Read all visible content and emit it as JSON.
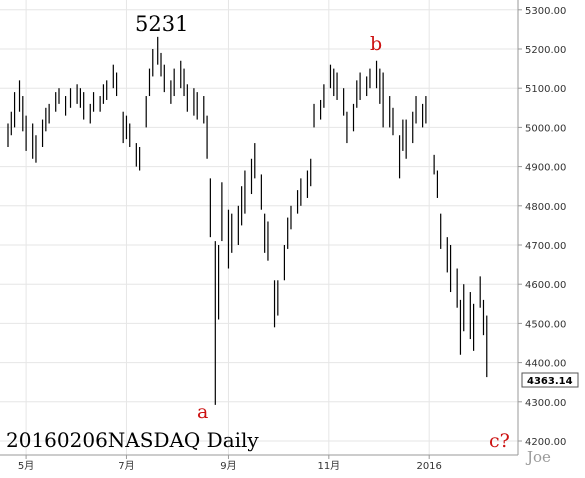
{
  "chart_data": {
    "type": "bar",
    "title": "20160206NASDAQ Daily",
    "y_axis": {
      "ticks": [
        "4200.00",
        "4300.00",
        "4400.00",
        "4500.00",
        "4600.00",
        "4700.00",
        "4800.00",
        "4900.00",
        "5000.00",
        "5100.00",
        "5200.00",
        "5300.00"
      ],
      "ylim": [
        4180,
        5320
      ],
      "side": "right"
    },
    "x_axis": {
      "ticks": [
        {
          "label": "5月",
          "date": "2015-05-01"
        },
        {
          "label": "7月",
          "date": "2015-07-01"
        },
        {
          "label": "9月",
          "date": "2015-09-01"
        },
        {
          "label": "11月",
          "date": "2015-11-01"
        },
        {
          "label": "2016",
          "date": "2016-01-01"
        }
      ],
      "xlim": [
        "2015-04-20",
        "2016-02-10"
      ]
    },
    "grid": true,
    "last_price": "4363.14",
    "annotations": {
      "peak": "5231",
      "wave_a": "a",
      "wave_b": "b",
      "wave_c": "c?"
    },
    "watermark": "Joe",
    "bars": [
      [
        "2015-04-20",
        5010,
        4950
      ],
      [
        "2015-04-22",
        5040,
        4980
      ],
      [
        "2015-04-24",
        5090,
        5000
      ],
      [
        "2015-04-27",
        5120,
        5040
      ],
      [
        "2015-04-29",
        5080,
        4990
      ],
      [
        "2015-05-01",
        5030,
        4940
      ],
      [
        "2015-05-05",
        5010,
        4920
      ],
      [
        "2015-05-07",
        4980,
        4910
      ],
      [
        "2015-05-11",
        5020,
        4950
      ],
      [
        "2015-05-13",
        5050,
        4990
      ],
      [
        "2015-05-15",
        5060,
        5010
      ],
      [
        "2015-05-19",
        5090,
        5040
      ],
      [
        "2015-05-21",
        5100,
        5060
      ],
      [
        "2015-05-25",
        5080,
        5030
      ],
      [
        "2015-05-28",
        5100,
        5050
      ],
      [
        "2015-06-01",
        5110,
        5060
      ],
      [
        "2015-06-03",
        5100,
        5050
      ],
      [
        "2015-06-05",
        5090,
        5020
      ],
      [
        "2015-06-09",
        5060,
        5010
      ],
      [
        "2015-06-11",
        5090,
        5040
      ],
      [
        "2015-06-15",
        5080,
        5040
      ],
      [
        "2015-06-17",
        5110,
        5060
      ],
      [
        "2015-06-19",
        5120,
        5070
      ],
      [
        "2015-06-23",
        5160,
        5100
      ],
      [
        "2015-06-25",
        5140,
        5080
      ],
      [
        "2015-06-29",
        5040,
        4960
      ],
      [
        "2015-07-01",
        5030,
        4970
      ],
      [
        "2015-07-03",
        5010,
        4950
      ],
      [
        "2015-07-07",
        4960,
        4900
      ],
      [
        "2015-07-09",
        4950,
        4890
      ],
      [
        "2015-07-13",
        5080,
        5000
      ],
      [
        "2015-07-15",
        5150,
        5080
      ],
      [
        "2015-07-17",
        5200,
        5130
      ],
      [
        "2015-07-20",
        5231,
        5160
      ],
      [
        "2015-07-22",
        5190,
        5130
      ],
      [
        "2015-07-24",
        5160,
        5090
      ],
      [
        "2015-07-28",
        5120,
        5060
      ],
      [
        "2015-07-30",
        5150,
        5080
      ],
      [
        "2015-08-03",
        5170,
        5100
      ],
      [
        "2015-08-05",
        5150,
        5080
      ],
      [
        "2015-08-07",
        5110,
        5040
      ],
      [
        "2015-08-11",
        5100,
        5030
      ],
      [
        "2015-08-13",
        5090,
        5020
      ],
      [
        "2015-08-17",
        5080,
        5010
      ],
      [
        "2015-08-19",
        5030,
        4920
      ],
      [
        "2015-08-21",
        4870,
        4720
      ],
      [
        "2015-08-24",
        4710,
        4292
      ],
      [
        "2015-08-26",
        4700,
        4510
      ],
      [
        "2015-08-28",
        4860,
        4710
      ],
      [
        "2015-09-01",
        4790,
        4640
      ],
      [
        "2015-09-03",
        4780,
        4680
      ],
      [
        "2015-09-07",
        4800,
        4700
      ],
      [
        "2015-09-09",
        4850,
        4750
      ],
      [
        "2015-09-11",
        4890,
        4780
      ],
      [
        "2015-09-15",
        4920,
        4830
      ],
      [
        "2015-09-17",
        4960,
        4870
      ],
      [
        "2015-09-21",
        4880,
        4790
      ],
      [
        "2015-09-23",
        4780,
        4680
      ],
      [
        "2015-09-25",
        4760,
        4660
      ],
      [
        "2015-09-29",
        4610,
        4490
      ],
      [
        "2015-10-01",
        4610,
        4520
      ],
      [
        "2015-10-05",
        4700,
        4610
      ],
      [
        "2015-10-07",
        4770,
        4690
      ],
      [
        "2015-10-09",
        4800,
        4740
      ],
      [
        "2015-10-13",
        4840,
        4780
      ],
      [
        "2015-10-15",
        4870,
        4800
      ],
      [
        "2015-10-19",
        4890,
        4820
      ],
      [
        "2015-10-21",
        4920,
        4850
      ],
      [
        "2015-10-23",
        5060,
        5000
      ],
      [
        "2015-10-27",
        5070,
        5020
      ],
      [
        "2015-10-29",
        5110,
        5050
      ],
      [
        "2015-11-02",
        5160,
        5100
      ],
      [
        "2015-11-04",
        5150,
        5080
      ],
      [
        "2015-11-06",
        5140,
        5070
      ],
      [
        "2015-11-10",
        5100,
        5030
      ],
      [
        "2015-11-12",
        5040,
        4960
      ],
      [
        "2015-11-16",
        5060,
        4990
      ],
      [
        "2015-11-18",
        5120,
        5050
      ],
      [
        "2015-11-20",
        5140,
        5070
      ],
      [
        "2015-11-24",
        5130,
        5080
      ],
      [
        "2015-11-26",
        5150,
        5100
      ],
      [
        "2015-11-30",
        5170,
        5100
      ],
      [
        "2015-12-02",
        5150,
        5060
      ],
      [
        "2015-12-04",
        5140,
        5000
      ],
      [
        "2015-12-08",
        5080,
        5000
      ],
      [
        "2015-12-10",
        5050,
        4980
      ],
      [
        "2015-12-14",
        4980,
        4870
      ],
      [
        "2015-12-16",
        5020,
        4940
      ],
      [
        "2015-12-18",
        5020,
        4920
      ],
      [
        "2015-12-22",
        5040,
        4960
      ],
      [
        "2015-12-24",
        5080,
        5010
      ],
      [
        "2015-12-28",
        5060,
        5000
      ],
      [
        "2015-12-30",
        5080,
        5010
      ],
      [
        "2016-01-04",
        4930,
        4880
      ],
      [
        "2016-01-06",
        4890,
        4820
      ],
      [
        "2016-01-08",
        4780,
        4690
      ],
      [
        "2016-01-12",
        4720,
        4630
      ],
      [
        "2016-01-14",
        4700,
        4580
      ],
      [
        "2016-01-18",
        4640,
        4540
      ],
      [
        "2016-01-20",
        4560,
        4420
      ],
      [
        "2016-01-22",
        4600,
        4480
      ],
      [
        "2016-01-26",
        4580,
        4460
      ],
      [
        "2016-01-28",
        4550,
        4430
      ],
      [
        "2016-02-01",
        4620,
        4540
      ],
      [
        "2016-02-03",
        4560,
        4470
      ],
      [
        "2016-02-05",
        4520,
        4363
      ]
    ]
  }
}
